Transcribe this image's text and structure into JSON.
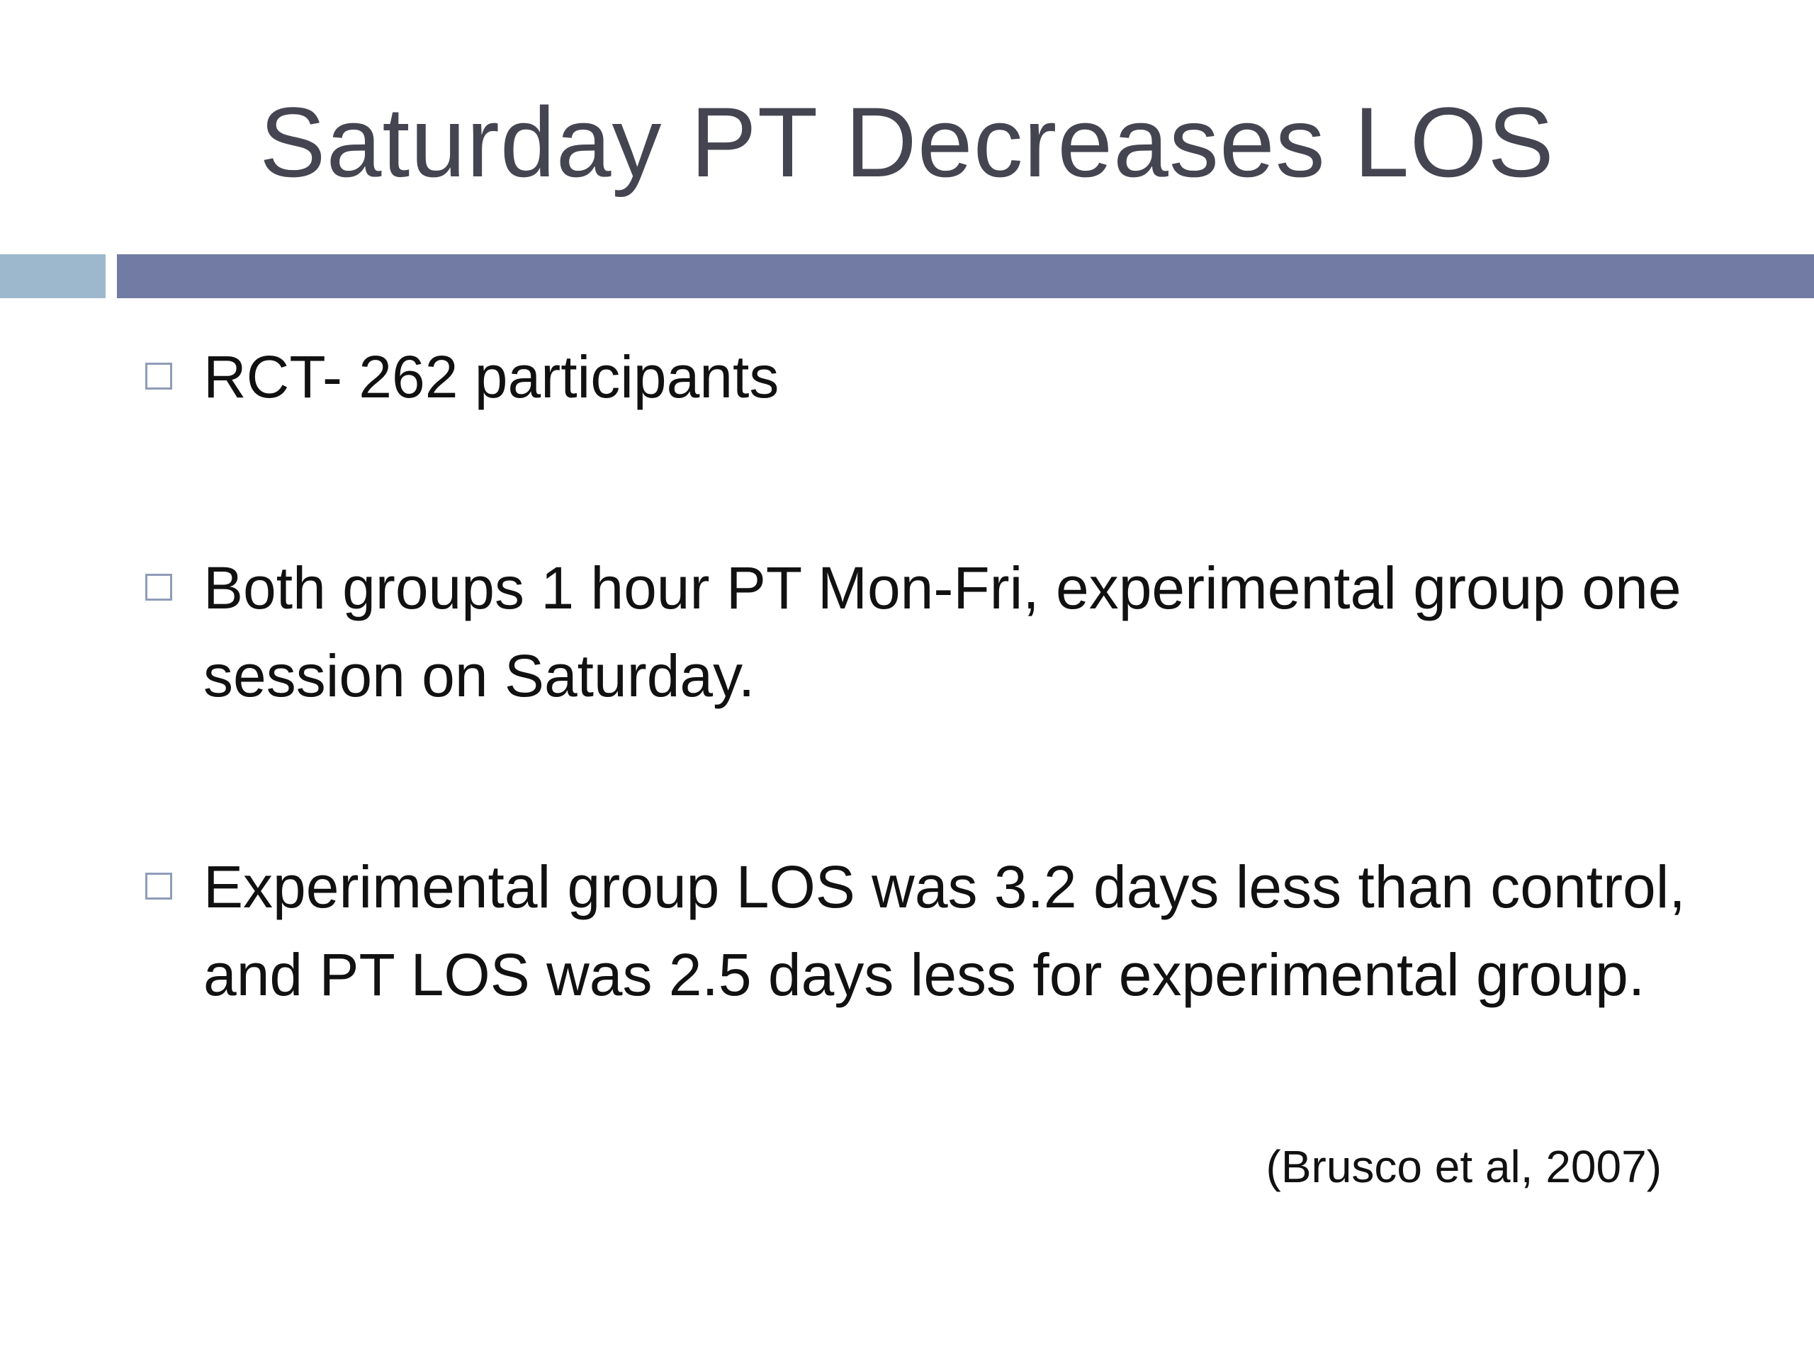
{
  "slide": {
    "title": "Saturday PT Decreases LOS",
    "bullets": [
      "RCT- 262 participants",
      "Both groups 1 hour PT Mon-Fri, experimental group one session on Saturday.",
      "Experimental group LOS was 3.2 days less than control, and PT LOS was 2.5 days less for experimental group."
    ],
    "citation": "(Brusco et al, 2007)"
  }
}
